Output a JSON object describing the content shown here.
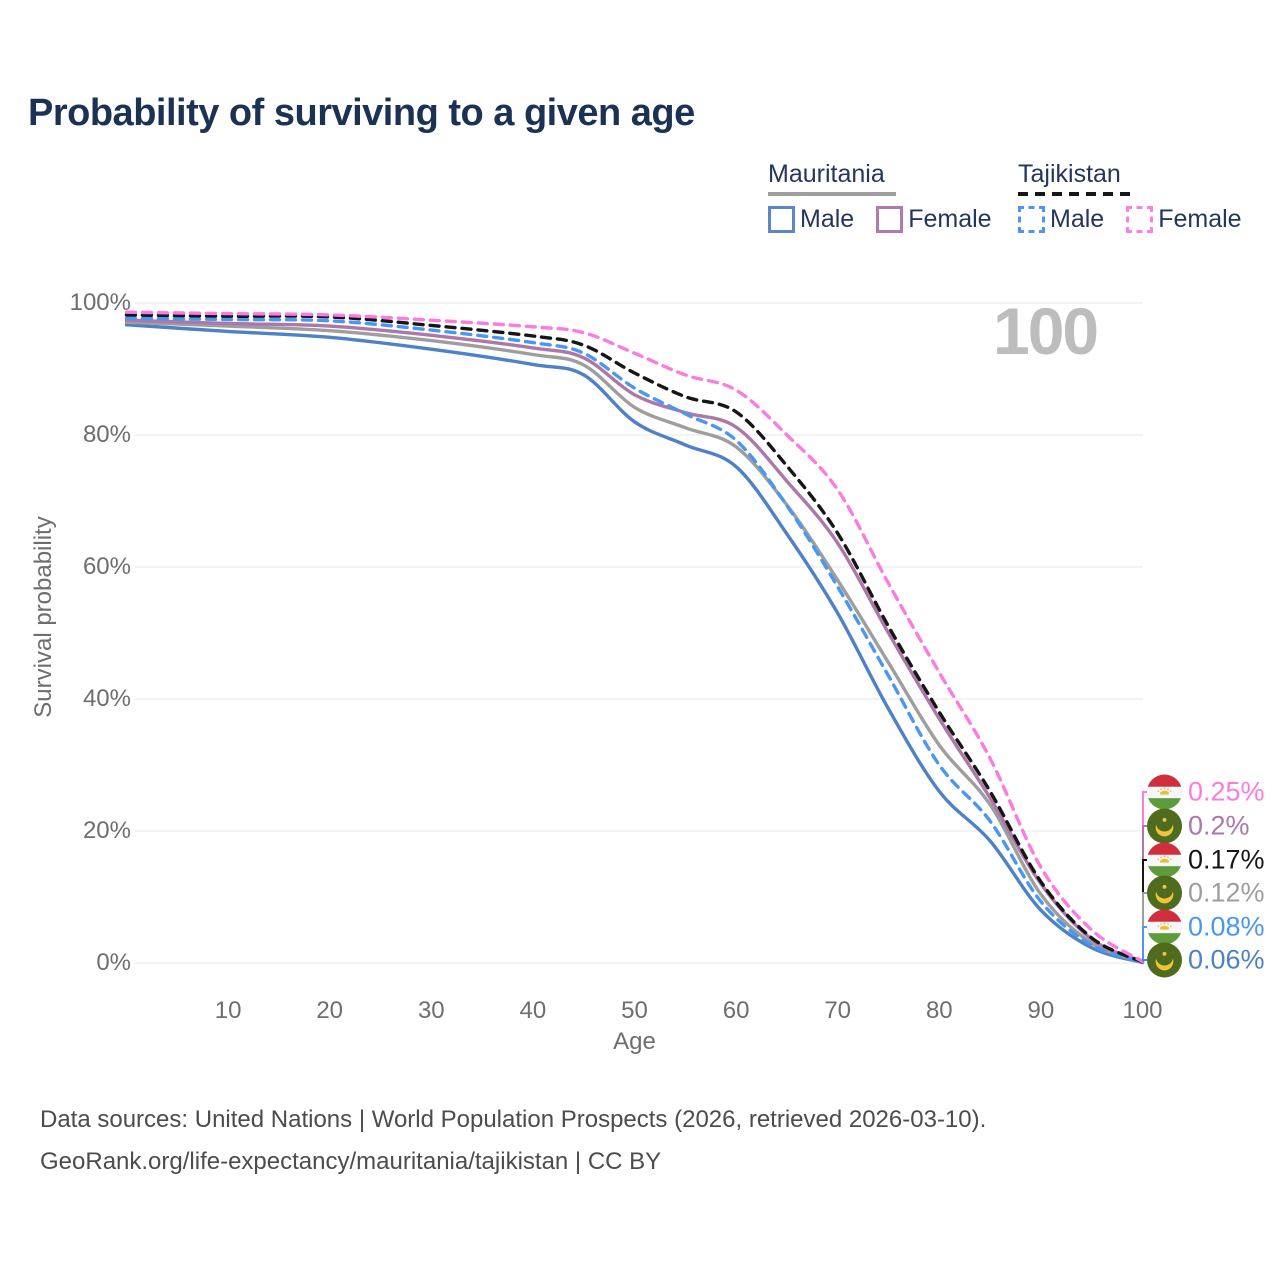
{
  "title": "Probability of surviving to a given age",
  "watermark": "100",
  "legend": {
    "groups": [
      {
        "country": "Mauritania",
        "line_style": "solid",
        "line_color": "#9e9e9e",
        "items": [
          {
            "label": "Male",
            "color": "#5b87c7",
            "dashed": false
          },
          {
            "label": "Female",
            "color": "#b279ae",
            "dashed": false
          }
        ]
      },
      {
        "country": "Tajikistan",
        "line_style": "dashed",
        "line_color": "#161616",
        "items": [
          {
            "label": "Male",
            "color": "#4d94f5",
            "dashed": true
          },
          {
            "label": "Female",
            "color": "#fb80e3",
            "dashed": true
          }
        ]
      }
    ]
  },
  "chart_data": {
    "type": "line",
    "title": "Probability of surviving to a given age",
    "xlabel": "Age",
    "ylabel": "Survival probability",
    "xlim": [
      0,
      100
    ],
    "ylim": [
      0,
      100
    ],
    "grid": "horizontal",
    "legend_position": "top-right",
    "x_ticks": [
      {
        "value": 10,
        "label": "10"
      },
      {
        "value": 20,
        "label": "20"
      },
      {
        "value": 30,
        "label": "30"
      },
      {
        "value": 40,
        "label": "40"
      },
      {
        "value": 50,
        "label": "50"
      },
      {
        "value": 60,
        "label": "60"
      },
      {
        "value": 70,
        "label": "70"
      },
      {
        "value": 80,
        "label": "80"
      },
      {
        "value": 90,
        "label": "90"
      },
      {
        "value": 100,
        "label": "100"
      }
    ],
    "y_ticks": [
      {
        "value": 0,
        "label": "0%"
      },
      {
        "value": 20,
        "label": "20%"
      },
      {
        "value": 40,
        "label": "40%"
      },
      {
        "value": 60,
        "label": "60%"
      },
      {
        "value": 80,
        "label": "80%"
      },
      {
        "value": 100,
        "label": "100%"
      }
    ],
    "ages": [
      0,
      10,
      20,
      30,
      40,
      45,
      50,
      55,
      60,
      65,
      70,
      75,
      80,
      85,
      90,
      95,
      100
    ],
    "unit": "percent",
    "series": [
      {
        "name": "Tajikistan Female",
        "country": "Tajikistan",
        "sex": "Female",
        "color": "#fb7be0",
        "dashed": true,
        "flag": "tajikistan",
        "end_label": "0.25%",
        "values": [
          98.6,
          98.4,
          98.2,
          97.4,
          96.4,
          95.5,
          92.4,
          89.1,
          86.8,
          80.0,
          71.7,
          57.5,
          44.0,
          31.0,
          14.5,
          5.0,
          0.25
        ]
      },
      {
        "name": "Mauritania Female",
        "country": "Mauritania",
        "sex": "Female",
        "color": "#ad77ab",
        "dashed": false,
        "flag": "mauritania",
        "end_label": "0.2%",
        "values": [
          97.4,
          96.9,
          96.5,
          95.1,
          93.2,
          91.7,
          86.1,
          83.4,
          81.2,
          73.0,
          63.6,
          50.0,
          37.0,
          25.0,
          12.0,
          3.6,
          0.2
        ]
      },
      {
        "name": "Tajikistan",
        "country": "Tajikistan",
        "sex": "Both",
        "color": "#161616",
        "dashed": true,
        "flag": "tajikistan",
        "end_label": "0.17%",
        "values": [
          98.2,
          98.0,
          97.9,
          96.6,
          95.0,
          93.6,
          89.4,
          85.8,
          83.5,
          75.3,
          65.1,
          51.0,
          38.0,
          26.0,
          12.3,
          3.8,
          0.17
        ]
      },
      {
        "name": "Mauritania",
        "country": "Mauritania",
        "sex": "Both",
        "color": "#9e9e9e",
        "dashed": false,
        "flag": "mauritania",
        "end_label": "0.12%",
        "values": [
          97.1,
          96.5,
          95.8,
          94.3,
          92.2,
          90.6,
          84.2,
          81.1,
          78.2,
          69.4,
          58.0,
          45.5,
          33.0,
          24.0,
          10.4,
          3.0,
          0.12
        ]
      },
      {
        "name": "Tajikistan Male",
        "country": "Tajikistan",
        "sex": "Male",
        "color": "#4a97f2",
        "dashed": true,
        "flag": "tajikistan",
        "end_label": "0.08%",
        "values": [
          97.7,
          97.5,
          97.3,
          95.9,
          94.0,
          92.4,
          87.1,
          83.2,
          79.2,
          69.3,
          57.0,
          43.5,
          30.0,
          21.5,
          9.3,
          2.7,
          0.08
        ]
      },
      {
        "name": "Mauritania Male",
        "country": "Mauritania",
        "sex": "Male",
        "color": "#4f81c7",
        "dashed": false,
        "flag": "mauritania",
        "end_label": "0.06%",
        "values": [
          96.7,
          95.7,
          94.8,
          93.0,
          90.7,
          89.1,
          82.0,
          78.5,
          75.2,
          65.0,
          53.0,
          38.5,
          26.0,
          18.5,
          8.0,
          2.3,
          0.06
        ]
      }
    ]
  },
  "flags": {
    "mauritania_colors": {
      "field": "#4e6b1e",
      "emblem": "#efc43a"
    },
    "tajikistan_colors": {
      "red": "#cf2f3c",
      "white": "#f7f7f7",
      "green": "#5d9c3c",
      "crown": "#e9bc3e"
    }
  },
  "footer": {
    "line1": "Data sources: United Nations | World Population Prospects (2026, retrieved 2026-03-10).",
    "line2": "GeoRank.org/life-expectancy/mauritania/tajikistan | CC BY"
  }
}
